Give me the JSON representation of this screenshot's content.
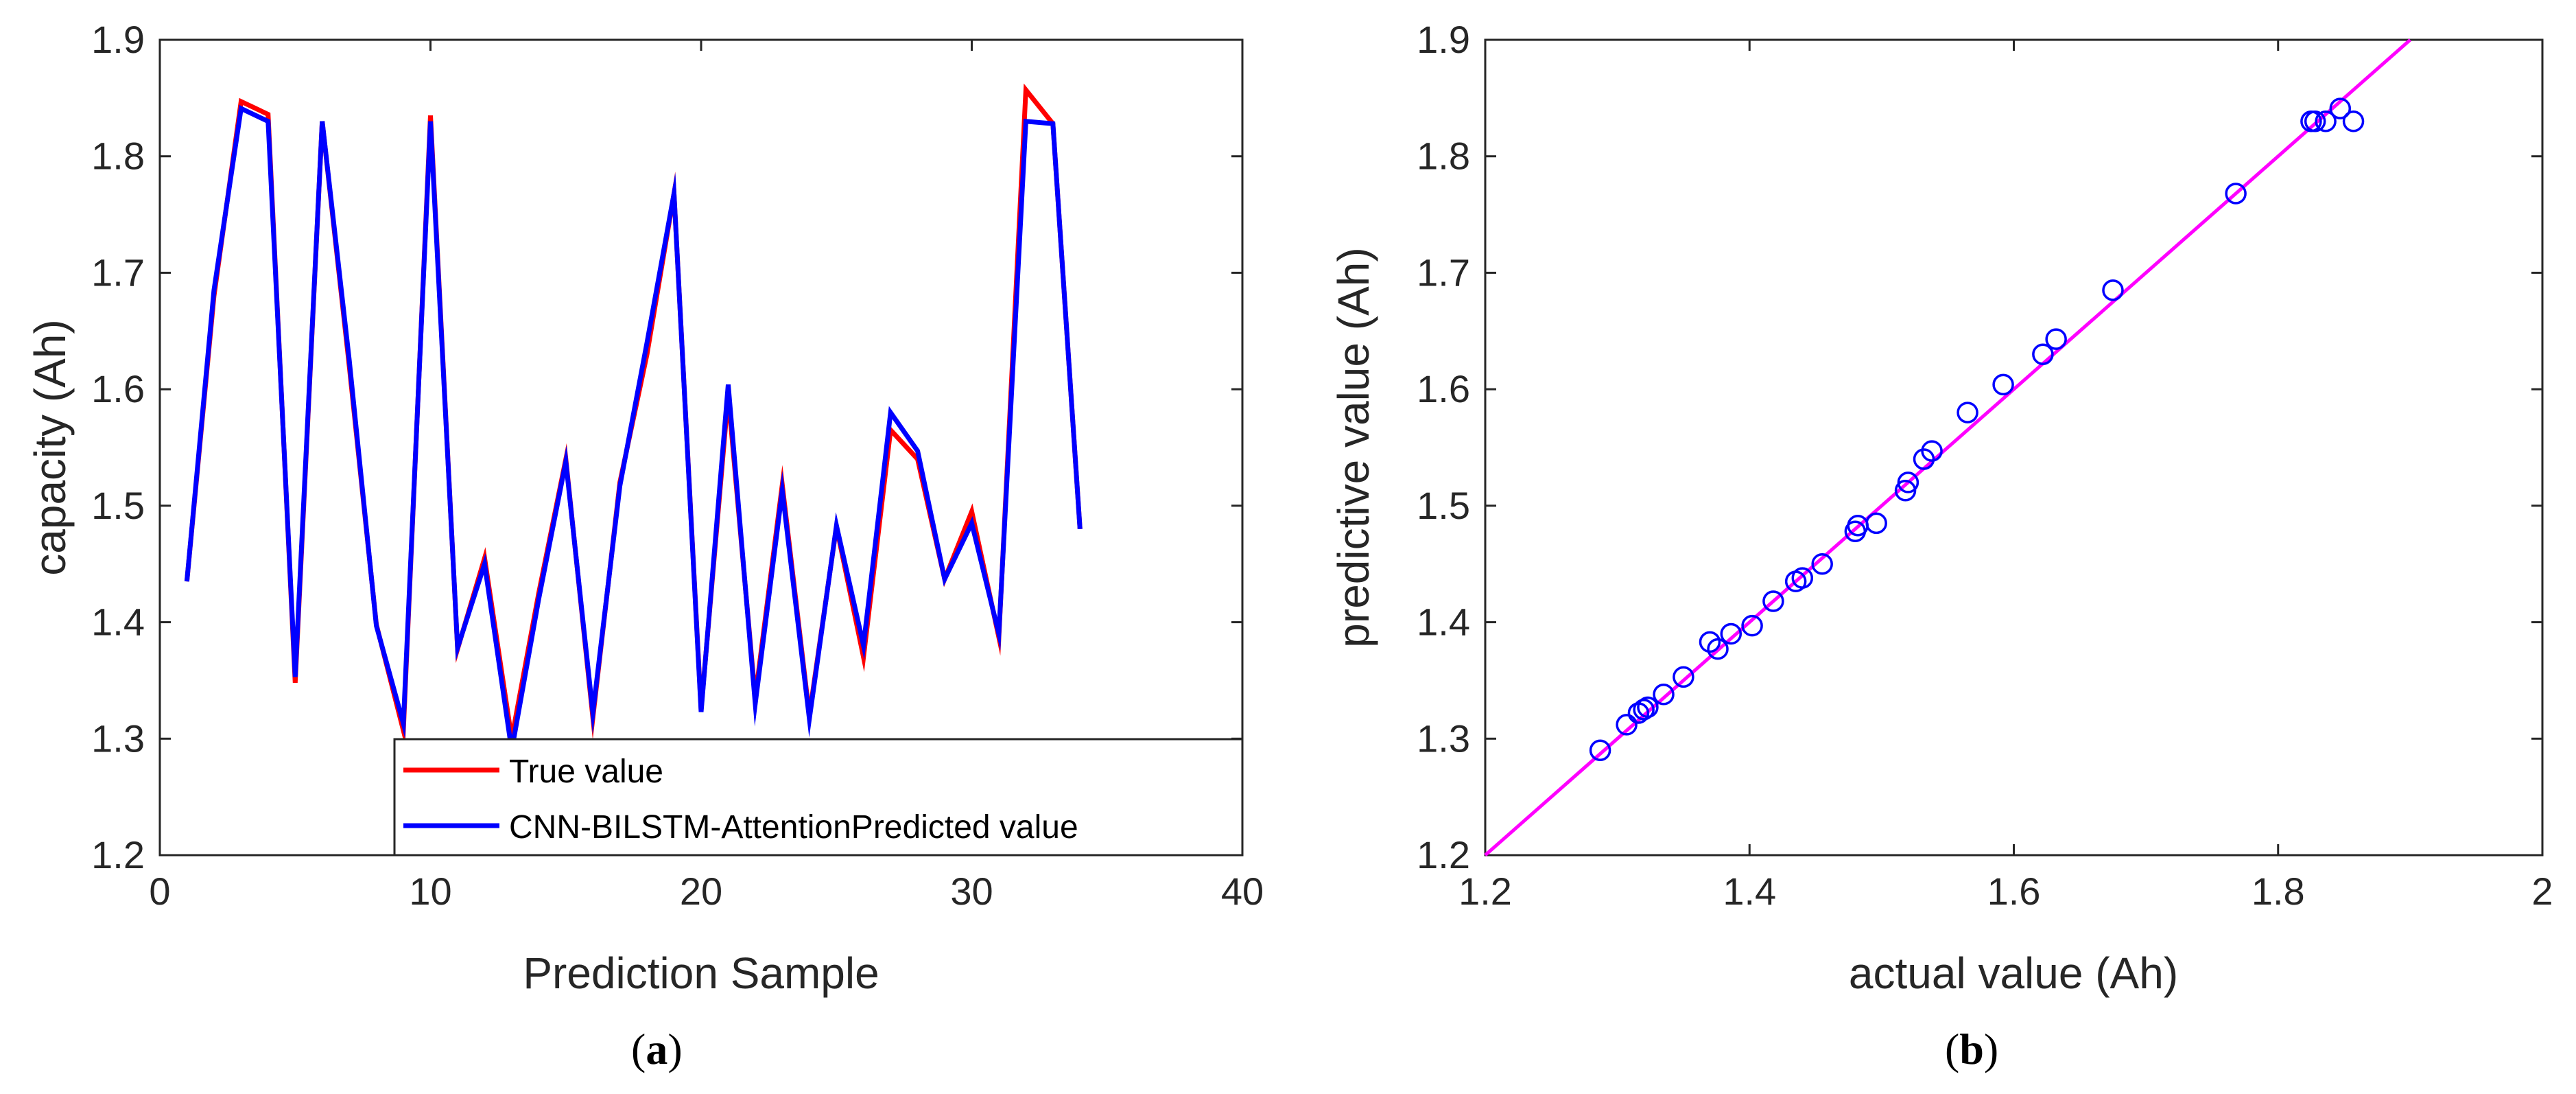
{
  "chart_data": [
    {
      "id": "a",
      "type": "line",
      "caption_open": "(",
      "caption_letter": "a",
      "caption_close": ")",
      "xlabel": "Prediction Sample",
      "ylabel": "capacity   (Ah)",
      "xlim": [
        0,
        40
      ],
      "ylim": [
        1.2,
        1.9
      ],
      "xticks": [
        "0",
        "10",
        "20",
        "30",
        "40"
      ],
      "yticks": [
        "1.2",
        "1.3",
        "1.4",
        "1.5",
        "1.6",
        "1.7",
        "1.8",
        "1.9"
      ],
      "legend_position": "bottom-right",
      "x": [
        1,
        2,
        3,
        4,
        5,
        6,
        7,
        8,
        9,
        10,
        11,
        12,
        13,
        14,
        15,
        16,
        17,
        18,
        19,
        20,
        21,
        22,
        23,
        24,
        25,
        26,
        27,
        28,
        29,
        30,
        31,
        32,
        33,
        34
      ],
      "series": [
        {
          "name": "True value",
          "color": "#ff0000",
          "values": [
            1.435,
            1.68,
            1.847,
            1.836,
            1.348,
            1.83,
            1.62,
            1.398,
            1.307,
            1.835,
            1.377,
            1.455,
            1.3,
            1.425,
            1.54,
            1.318,
            1.52,
            1.63,
            1.768,
            1.325,
            1.595,
            1.335,
            1.518,
            1.32,
            1.482,
            1.37,
            1.565,
            1.54,
            1.437,
            1.495,
            1.387,
            1.857,
            1.828,
            1.48
          ]
        },
        {
          "name": "CNN-BILSTM-AttentionPredicted value",
          "color": "#0000ff",
          "values": [
            1.435,
            1.685,
            1.841,
            1.83,
            1.353,
            1.83,
            1.625,
            1.397,
            1.313,
            1.83,
            1.378,
            1.45,
            1.29,
            1.42,
            1.538,
            1.322,
            1.517,
            1.64,
            1.768,
            1.323,
            1.604,
            1.33,
            1.513,
            1.317,
            1.483,
            1.38,
            1.58,
            1.547,
            1.437,
            1.485,
            1.39,
            1.83,
            1.828,
            1.48
          ]
        }
      ]
    },
    {
      "id": "b",
      "type": "scatter",
      "caption_open": "(",
      "caption_letter": "b",
      "caption_close": ")",
      "xlabel": "actual value (Ah)",
      "ylabel": "predictive value (Ah)",
      "xlim": [
        1.2,
        2.0
      ],
      "ylim": [
        1.2,
        1.9
      ],
      "xticks": [
        "1.2",
        "1.4",
        "1.6",
        "1.8",
        "2"
      ],
      "yticks": [
        "1.2",
        "1.3",
        "1.4",
        "1.5",
        "1.6",
        "1.7",
        "1.8",
        "1.9"
      ],
      "marker_color": "#0000ff",
      "fit_line_color": "#ff00ff",
      "fit_line": {
        "x": [
          1.2,
          1.9
        ],
        "y": [
          1.2,
          1.9
        ]
      },
      "points": {
        "x": [
          1.287,
          1.307,
          1.316,
          1.32,
          1.323,
          1.335,
          1.35,
          1.37,
          1.376,
          1.386,
          1.402,
          1.418,
          1.435,
          1.44,
          1.455,
          1.48,
          1.482,
          1.496,
          1.518,
          1.52,
          1.532,
          1.538,
          1.565,
          1.592,
          1.622,
          1.632,
          1.675,
          1.768,
          1.825,
          1.828,
          1.836,
          1.847,
          1.857
        ],
        "y": [
          1.29,
          1.312,
          1.322,
          1.325,
          1.327,
          1.338,
          1.353,
          1.383,
          1.377,
          1.39,
          1.397,
          1.418,
          1.435,
          1.438,
          1.45,
          1.478,
          1.483,
          1.485,
          1.513,
          1.52,
          1.54,
          1.547,
          1.58,
          1.604,
          1.63,
          1.643,
          1.685,
          1.768,
          1.83,
          1.83,
          1.83,
          1.841,
          1.83
        ]
      }
    }
  ]
}
